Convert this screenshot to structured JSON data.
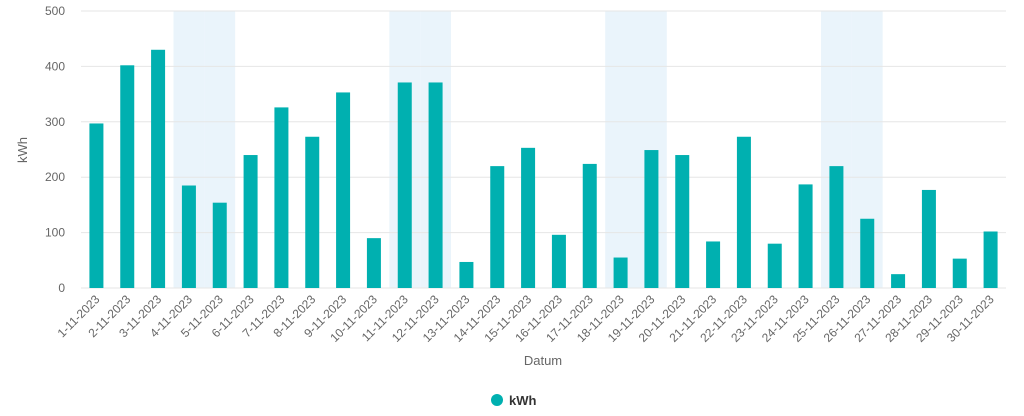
{
  "colors": {
    "bar": "#00b0b0",
    "weekend_band": "#eaf4fb",
    "grid": "#e6e6e6"
  },
  "chart_data": {
    "type": "bar",
    "title": "",
    "xlabel": "Datum",
    "ylabel": "kWh",
    "ylim": [
      0,
      500
    ],
    "yticks": [
      0,
      100,
      200,
      300,
      400,
      500
    ],
    "grid": true,
    "legend_position": "bottom-center",
    "categories": [
      "1-11-2023",
      "2-11-2023",
      "3-11-2023",
      "4-11-2023",
      "5-11-2023",
      "6-11-2023",
      "7-11-2023",
      "8-11-2023",
      "9-11-2023",
      "10-11-2023",
      "11-11-2023",
      "12-11-2023",
      "13-11-2023",
      "14-11-2023",
      "15-11-2023",
      "16-11-2023",
      "17-11-2023",
      "18-11-2023",
      "19-11-2023",
      "20-11-2023",
      "21-11-2023",
      "22-11-2023",
      "23-11-2023",
      "24-11-2023",
      "25-11-2023",
      "26-11-2023",
      "27-11-2023",
      "28-11-2023",
      "29-11-2023",
      "30-11-2023"
    ],
    "highlighted_categories": [
      "4-11-2023",
      "5-11-2023",
      "11-11-2023",
      "12-11-2023",
      "18-11-2023",
      "19-11-2023",
      "25-11-2023",
      "26-11-2023"
    ],
    "series": [
      {
        "name": "kWh",
        "values": [
          297,
          402,
          430,
          185,
          154,
          240,
          326,
          273,
          353,
          90,
          371,
          371,
          47,
          220,
          253,
          96,
          224,
          55,
          249,
          240,
          84,
          273,
          80,
          187,
          220,
          125,
          25,
          177,
          53,
          102
        ]
      }
    ]
  }
}
